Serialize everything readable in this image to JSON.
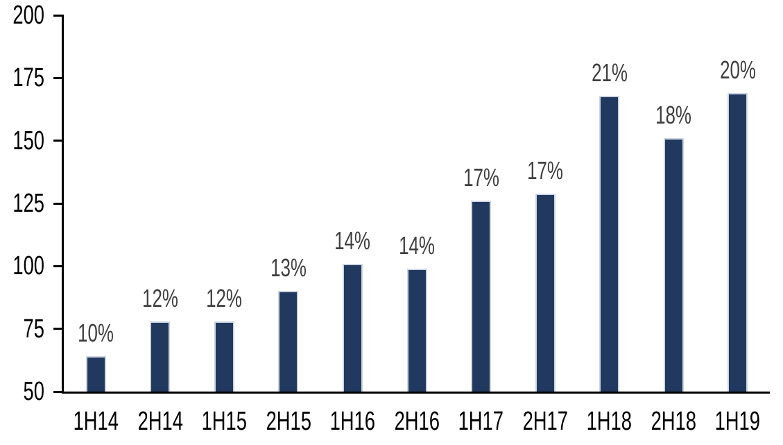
{
  "colors": {
    "bar_fill": "#21395F",
    "bar_border": "#CDD5E2",
    "data_label": "#3F3F3F",
    "axis": "#000000",
    "background": "#FFFFFF"
  },
  "chart_data": {
    "type": "bar",
    "title": "",
    "xlabel": "",
    "ylabel": "",
    "categories": [
      "1H14",
      "2H14",
      "1H15",
      "2H15",
      "1H16",
      "2H16",
      "1H17",
      "2H17",
      "1H18",
      "2H18",
      "1H19"
    ],
    "values": [
      64,
      78,
      78,
      90,
      101,
      99,
      126,
      129,
      168,
      151,
      169
    ],
    "data_labels": [
      "10%",
      "12%",
      "12%",
      "13%",
      "14%",
      "14%",
      "17%",
      "17%",
      "21%",
      "18%",
      "20%"
    ],
    "ylim": [
      50,
      200
    ],
    "yticks": [
      50,
      75,
      100,
      125,
      150,
      175,
      200
    ],
    "grid": "off",
    "legend": "none"
  }
}
